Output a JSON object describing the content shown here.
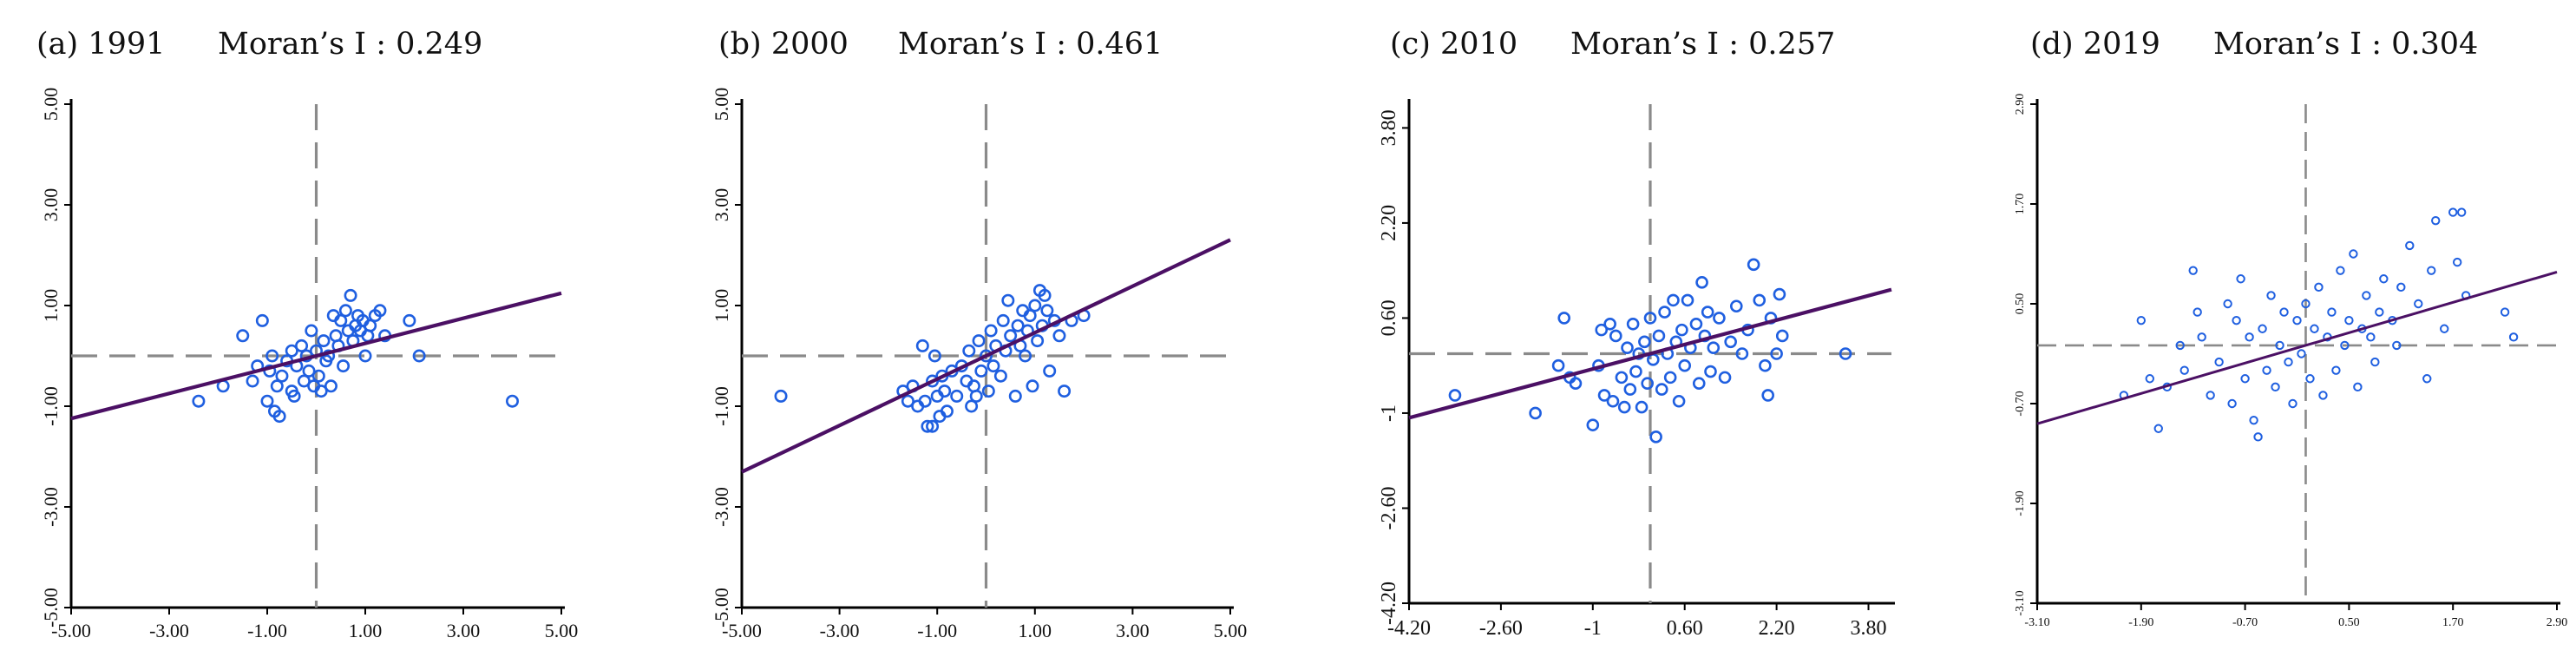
{
  "chart_data": [
    {
      "type": "scatter",
      "panel_label": "(a) 1991",
      "stat_label": "Moran’s I : 0.249",
      "moran_i": 0.249,
      "xlim": [
        -5,
        5
      ],
      "ylim": [
        -5,
        5
      ],
      "xticks": [
        -5,
        -3,
        -1,
        1,
        3,
        5
      ],
      "xtick_labels": [
        "-5.00",
        "-3.00",
        "-1.00",
        "1.00",
        "3.00",
        "5.00"
      ],
      "yticks": [
        -5,
        -3,
        -1,
        1,
        3,
        5
      ],
      "ytick_labels": [
        "-5.00",
        "-3.00",
        "-1.00",
        "1.00",
        "3.00",
        "5.00"
      ],
      "marker_color": "#1f5fe0",
      "line_color": "#4b1064",
      "guide_color": "#8a8a8a",
      "points": [
        [
          -2.4,
          -0.9
        ],
        [
          -1.9,
          -0.6
        ],
        [
          -1.5,
          0.4
        ],
        [
          -1.3,
          -0.5
        ],
        [
          -1.2,
          -0.2
        ],
        [
          -1.1,
          0.7
        ],
        [
          -1.0,
          -0.9
        ],
        [
          -0.95,
          -0.3
        ],
        [
          -0.9,
          0.0
        ],
        [
          -0.85,
          -1.1
        ],
        [
          -0.8,
          -0.6
        ],
        [
          -0.75,
          -1.2
        ],
        [
          -0.7,
          -0.4
        ],
        [
          -0.6,
          -0.1
        ],
        [
          -0.5,
          0.1
        ],
        [
          -0.5,
          -0.7
        ],
        [
          -0.45,
          -0.8
        ],
        [
          -0.4,
          -0.2
        ],
        [
          -0.3,
          0.2
        ],
        [
          -0.25,
          -0.5
        ],
        [
          -0.2,
          0.0
        ],
        [
          -0.15,
          -0.3
        ],
        [
          -0.1,
          0.5
        ],
        [
          -0.05,
          -0.6
        ],
        [
          0.0,
          0.1
        ],
        [
          0.05,
          -0.4
        ],
        [
          0.1,
          -0.7
        ],
        [
          0.15,
          0.3
        ],
        [
          0.2,
          -0.1
        ],
        [
          0.25,
          0.0
        ],
        [
          0.3,
          -0.6
        ],
        [
          0.35,
          0.8
        ],
        [
          0.4,
          0.4
        ],
        [
          0.45,
          0.2
        ],
        [
          0.5,
          0.7
        ],
        [
          0.55,
          -0.2
        ],
        [
          0.6,
          0.9
        ],
        [
          0.65,
          0.5
        ],
        [
          0.7,
          1.2
        ],
        [
          0.75,
          0.3
        ],
        [
          0.8,
          0.6
        ],
        [
          0.85,
          0.8
        ],
        [
          0.9,
          0.5
        ],
        [
          0.95,
          0.7
        ],
        [
          1.0,
          0.0
        ],
        [
          1.05,
          0.4
        ],
        [
          1.1,
          0.6
        ],
        [
          1.2,
          0.8
        ],
        [
          1.3,
          0.9
        ],
        [
          1.4,
          0.4
        ],
        [
          1.9,
          0.7
        ],
        [
          2.1,
          0.0
        ],
        [
          4.0,
          -0.9
        ]
      ]
    },
    {
      "type": "scatter",
      "panel_label": "(b) 2000",
      "stat_label": "Moran’s I : 0.461",
      "moran_i": 0.461,
      "xlim": [
        -5,
        5
      ],
      "ylim": [
        -5,
        5
      ],
      "xticks": [
        -5,
        -3,
        -1,
        1,
        3,
        5
      ],
      "xtick_labels": [
        "-5.00",
        "-3.00",
        "-1.00",
        "1.00",
        "3.00",
        "5.00"
      ],
      "yticks": [
        -5,
        -3,
        -1,
        1,
        3,
        5
      ],
      "ytick_labels": [
        "-5.00",
        "-3.00",
        "-1.00",
        "1.00",
        "3.00",
        "5.00"
      ],
      "marker_color": "#1f5fe0",
      "line_color": "#4b1064",
      "guide_color": "#8a8a8a",
      "points": [
        [
          -4.2,
          -0.8
        ],
        [
          -1.7,
          -0.7
        ],
        [
          -1.6,
          -0.9
        ],
        [
          -1.5,
          -0.6
        ],
        [
          -1.4,
          -1.0
        ],
        [
          -1.3,
          0.2
        ],
        [
          -1.25,
          -0.9
        ],
        [
          -1.2,
          -1.4
        ],
        [
          -1.1,
          -0.5
        ],
        [
          -1.1,
          -1.4
        ],
        [
          -1.05,
          0.0
        ],
        [
          -1.0,
          -0.8
        ],
        [
          -0.95,
          -1.2
        ],
        [
          -0.9,
          -0.4
        ],
        [
          -0.85,
          -0.7
        ],
        [
          -0.8,
          -1.1
        ],
        [
          -0.7,
          -0.3
        ],
        [
          -0.6,
          -0.8
        ],
        [
          -0.5,
          -0.2
        ],
        [
          -0.4,
          -0.5
        ],
        [
          -0.35,
          0.1
        ],
        [
          -0.3,
          -1.0
        ],
        [
          -0.25,
          -0.6
        ],
        [
          -0.2,
          -0.8
        ],
        [
          -0.15,
          0.3
        ],
        [
          -0.1,
          -0.3
        ],
        [
          0.0,
          0.0
        ],
        [
          0.05,
          -0.7
        ],
        [
          0.1,
          0.5
        ],
        [
          0.15,
          -0.2
        ],
        [
          0.2,
          0.2
        ],
        [
          0.3,
          -0.4
        ],
        [
          0.35,
          0.7
        ],
        [
          0.4,
          0.1
        ],
        [
          0.45,
          1.1
        ],
        [
          0.5,
          0.4
        ],
        [
          0.6,
          -0.8
        ],
        [
          0.65,
          0.6
        ],
        [
          0.7,
          0.2
        ],
        [
          0.75,
          0.9
        ],
        [
          0.8,
          0.0
        ],
        [
          0.85,
          0.5
        ],
        [
          0.9,
          0.8
        ],
        [
          0.95,
          -0.6
        ],
        [
          1.0,
          1.0
        ],
        [
          1.05,
          0.3
        ],
        [
          1.1,
          1.3
        ],
        [
          1.15,
          0.6
        ],
        [
          1.2,
          1.2
        ],
        [
          1.25,
          0.9
        ],
        [
          1.3,
          -0.3
        ],
        [
          1.4,
          0.7
        ],
        [
          1.5,
          0.4
        ],
        [
          1.6,
          -0.7
        ],
        [
          1.75,
          0.7
        ],
        [
          2.0,
          0.8
        ]
      ]
    },
    {
      "type": "scatter",
      "panel_label": "(c) 2010",
      "stat_label": "Moran’s I : 0.257",
      "moran_i": 0.257,
      "xlim": [
        -4.2,
        4.2
      ],
      "ylim": [
        -4.2,
        4.2
      ],
      "xticks": [
        -4.2,
        -2.6,
        -1,
        0.6,
        2.2,
        3.8
      ],
      "xtick_labels": [
        "-4.20",
        "-2.60",
        "-1",
        "0.60",
        "2.20",
        "3.80"
      ],
      "yticks": [
        -4.2,
        -2.6,
        -1,
        0.6,
        2.2,
        3.8
      ],
      "ytick_labels": [
        "-4.20",
        "-2.60",
        "-1",
        "0.60",
        "2.20",
        "3.80"
      ],
      "marker_color": "#1f5fe0",
      "line_color": "#4b1064",
      "guide_color": "#8a8a8a",
      "points": [
        [
          -3.4,
          -0.7
        ],
        [
          -2.0,
          -1.0
        ],
        [
          -1.6,
          -0.2
        ],
        [
          -1.5,
          0.6
        ],
        [
          -1.4,
          -0.4
        ],
        [
          -1.3,
          -0.5
        ],
        [
          -1.0,
          -1.2
        ],
        [
          -0.9,
          -0.2
        ],
        [
          -0.85,
          0.4
        ],
        [
          -0.8,
          -0.7
        ],
        [
          -0.7,
          0.5
        ],
        [
          -0.65,
          -0.8
        ],
        [
          -0.6,
          0.3
        ],
        [
          -0.5,
          -0.4
        ],
        [
          -0.45,
          -0.9
        ],
        [
          -0.4,
          0.1
        ],
        [
          -0.35,
          -0.6
        ],
        [
          -0.3,
          0.5
        ],
        [
          -0.25,
          -0.3
        ],
        [
          -0.2,
          0.0
        ],
        [
          -0.15,
          -0.9
        ],
        [
          -0.1,
          0.2
        ],
        [
          -0.05,
          -0.5
        ],
        [
          0.0,
          0.6
        ],
        [
          0.05,
          -0.1
        ],
        [
          0.1,
          -1.4
        ],
        [
          0.15,
          0.3
        ],
        [
          0.2,
          -0.6
        ],
        [
          0.25,
          0.7
        ],
        [
          0.3,
          0.0
        ],
        [
          0.35,
          -0.4
        ],
        [
          0.4,
          0.9
        ],
        [
          0.45,
          0.2
        ],
        [
          0.5,
          -0.8
        ],
        [
          0.55,
          0.4
        ],
        [
          0.6,
          -0.2
        ],
        [
          0.65,
          0.9
        ],
        [
          0.7,
          0.1
        ],
        [
          0.8,
          0.5
        ],
        [
          0.85,
          -0.5
        ],
        [
          0.9,
          1.2
        ],
        [
          0.95,
          0.3
        ],
        [
          1.0,
          0.7
        ],
        [
          1.05,
          -0.3
        ],
        [
          1.1,
          0.1
        ],
        [
          1.2,
          0.6
        ],
        [
          1.3,
          -0.4
        ],
        [
          1.4,
          0.2
        ],
        [
          1.5,
          0.8
        ],
        [
          1.6,
          0.0
        ],
        [
          1.7,
          0.4
        ],
        [
          1.8,
          1.5
        ],
        [
          1.9,
          0.9
        ],
        [
          2.0,
          -0.2
        ],
        [
          2.05,
          -0.7
        ],
        [
          2.1,
          0.6
        ],
        [
          2.2,
          0.0
        ],
        [
          2.25,
          1.0
        ],
        [
          2.3,
          0.3
        ],
        [
          3.4,
          0.0
        ]
      ]
    },
    {
      "type": "scatter",
      "panel_label": "(d) 2019",
      "stat_label": "Moran’s I : 0.304",
      "moran_i": 0.304,
      "xlim": [
        -3.1,
        2.9
      ],
      "ylim": [
        -3.1,
        2.9
      ],
      "xticks": [
        -3.1,
        -1.9,
        -0.7,
        0.5,
        1.7,
        2.9
      ],
      "xtick_labels": [
        "-3.10",
        "-1.90",
        "-0.70",
        "0.50",
        "1.70",
        "2.90"
      ],
      "yticks": [
        -3.1,
        -1.9,
        -0.7,
        0.5,
        1.7,
        2.9
      ],
      "ytick_labels": [
        "-3.10",
        "-1.90",
        "-0.70",
        "0.50",
        "1.70",
        "2.90"
      ],
      "marker_color": "#1f5fe0",
      "line_color": "#4b1064",
      "guide_color": "#8a8a8a",
      "points": [
        [
          -2.1,
          -0.6
        ],
        [
          -1.9,
          0.3
        ],
        [
          -1.8,
          -0.4
        ],
        [
          -1.7,
          -1.0
        ],
        [
          -1.6,
          -0.5
        ],
        [
          -1.45,
          0.0
        ],
        [
          -1.4,
          -0.3
        ],
        [
          -1.3,
          0.9
        ],
        [
          -1.25,
          0.4
        ],
        [
          -1.2,
          0.1
        ],
        [
          -1.1,
          -0.6
        ],
        [
          -1.0,
          -0.2
        ],
        [
          -0.9,
          0.5
        ],
        [
          -0.85,
          -0.7
        ],
        [
          -0.8,
          0.3
        ],
        [
          -0.75,
          0.8
        ],
        [
          -0.7,
          -0.4
        ],
        [
          -0.65,
          0.1
        ],
        [
          -0.6,
          -0.9
        ],
        [
          -0.55,
          -1.1
        ],
        [
          -0.5,
          0.2
        ],
        [
          -0.45,
          -0.3
        ],
        [
          -0.4,
          0.6
        ],
        [
          -0.35,
          -0.5
        ],
        [
          -0.3,
          0.0
        ],
        [
          -0.25,
          0.4
        ],
        [
          -0.2,
          -0.2
        ],
        [
          -0.15,
          -0.7
        ],
        [
          -0.1,
          0.3
        ],
        [
          -0.05,
          -0.1
        ],
        [
          0.0,
          0.5
        ],
        [
          0.05,
          -0.4
        ],
        [
          0.1,
          0.2
        ],
        [
          0.15,
          0.7
        ],
        [
          0.2,
          -0.6
        ],
        [
          0.25,
          0.1
        ],
        [
          0.3,
          0.4
        ],
        [
          0.35,
          -0.3
        ],
        [
          0.4,
          0.9
        ],
        [
          0.45,
          0.0
        ],
        [
          0.5,
          0.3
        ],
        [
          0.55,
          1.1
        ],
        [
          0.6,
          -0.5
        ],
        [
          0.65,
          0.2
        ],
        [
          0.7,
          0.6
        ],
        [
          0.75,
          0.1
        ],
        [
          0.8,
          -0.2
        ],
        [
          0.85,
          0.4
        ],
        [
          0.9,
          0.8
        ],
        [
          1.0,
          0.3
        ],
        [
          1.05,
          0.0
        ],
        [
          1.1,
          0.7
        ],
        [
          1.2,
          1.2
        ],
        [
          1.3,
          0.5
        ],
        [
          1.4,
          -0.4
        ],
        [
          1.45,
          0.9
        ],
        [
          1.5,
          1.5
        ],
        [
          1.6,
          0.2
        ],
        [
          1.7,
          1.6
        ],
        [
          1.75,
          1.0
        ],
        [
          1.8,
          1.6
        ],
        [
          1.85,
          0.6
        ],
        [
          2.3,
          0.4
        ],
        [
          2.4,
          0.1
        ]
      ]
    }
  ]
}
